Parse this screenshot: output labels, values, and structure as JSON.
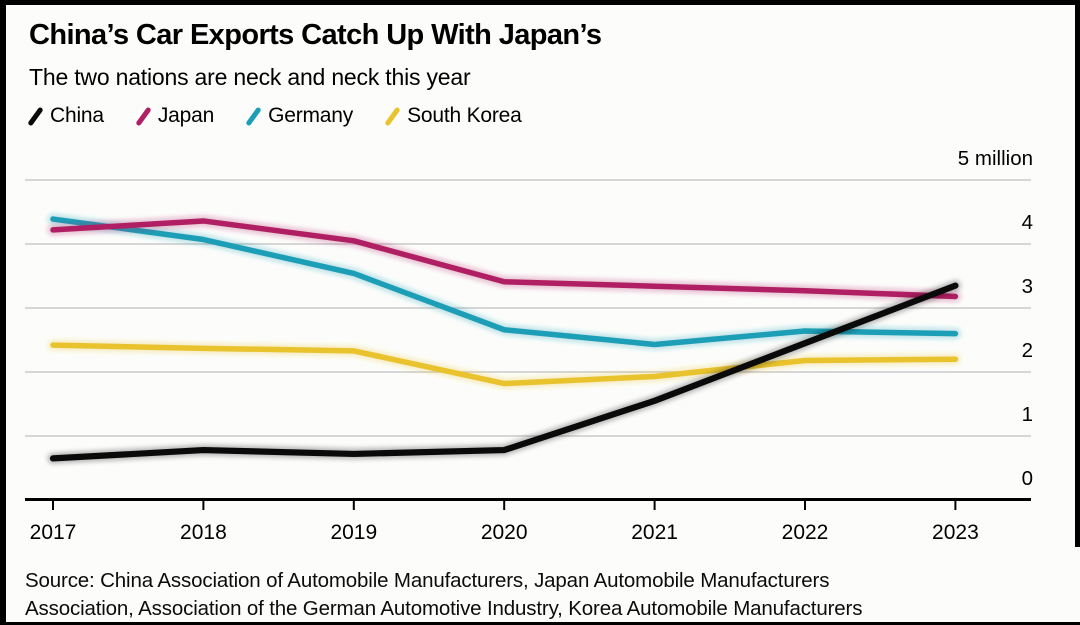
{
  "header": {
    "title": "China’s Car Exports Catch Up With Japan’s",
    "subtitle": "The two nations are neck and neck this year"
  },
  "legend": {
    "items": [
      {
        "label": "China",
        "color": "#0a0a0a"
      },
      {
        "label": "Japan",
        "color": "#b01e63"
      },
      {
        "label": "Germany",
        "color": "#1c9fb6"
      },
      {
        "label": "South Korea",
        "color": "#e8c32e"
      }
    ]
  },
  "chart_data": {
    "type": "line",
    "title": "China’s Car Exports Catch Up With Japan’s",
    "subtitle": "The two nations are neck and neck this year",
    "x": [
      2017,
      2018,
      2019,
      2020,
      2021,
      2022,
      2023
    ],
    "series": [
      {
        "name": "China",
        "color": "#0a0a0a",
        "values": [
          0.65,
          0.78,
          0.72,
          0.78,
          1.55,
          2.45,
          3.35
        ]
      },
      {
        "name": "Japan",
        "color": "#b01e63",
        "values": [
          4.22,
          4.36,
          4.05,
          3.41,
          3.34,
          3.27,
          3.18
        ]
      },
      {
        "name": "Germany",
        "color": "#1c9fb6",
        "values": [
          4.39,
          4.07,
          3.54,
          2.66,
          2.43,
          2.64,
          2.6
        ]
      },
      {
        "name": "South Korea",
        "color": "#e8c32e",
        "values": [
          2.42,
          2.37,
          2.33,
          1.82,
          1.93,
          2.18,
          2.2
        ]
      }
    ],
    "xlabel": "",
    "ylabel": "",
    "unit_label": "5 million",
    "ylim": [
      0,
      5
    ],
    "yticks": [
      0,
      1,
      2,
      3,
      4,
      5
    ],
    "ytick_labels": [
      "0",
      "1",
      "2",
      "3",
      "4",
      "5 million"
    ],
    "xtick_labels": [
      "2017",
      "2018",
      "2019",
      "2020",
      "2021",
      "2022",
      "2023"
    ],
    "grid": "horizontal",
    "legend_position": "top-left"
  },
  "source": {
    "lines": [
      "Source: China Association of Automobile Manufacturers, Japan Automobile Manufacturers",
      "Association, Association of the German Automotive Industry, Korea Automobile Manufacturers"
    ]
  }
}
